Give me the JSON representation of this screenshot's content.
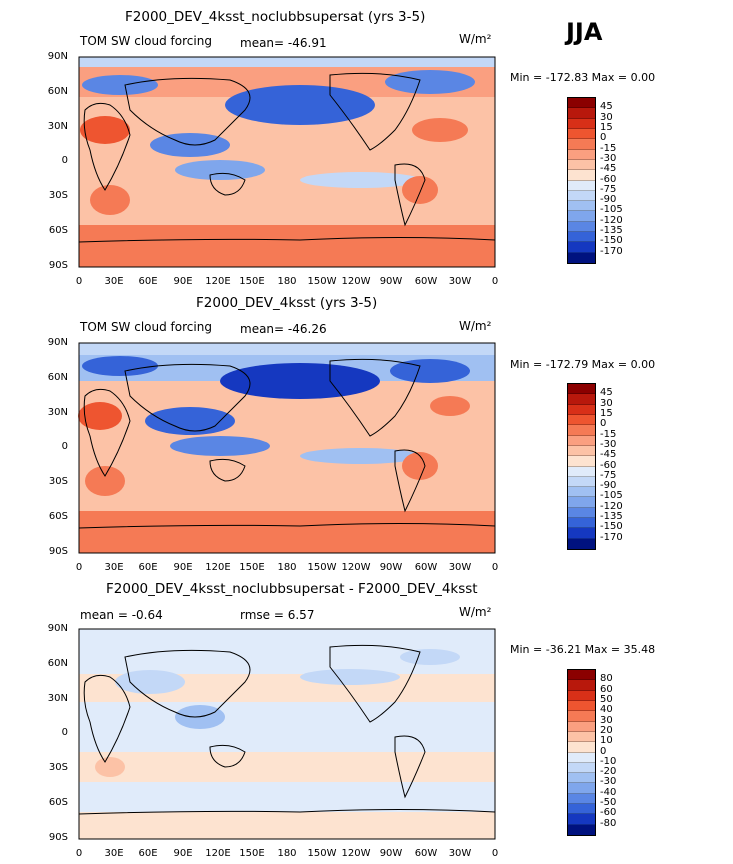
{
  "season": "JJA",
  "panels": [
    {
      "title": "F2000_DEV_4ksst_noclubbsupersat (yrs 3-5)",
      "left_label": "TOM SW cloud forcing",
      "stat_text": "mean= -46.91",
      "units": "W/m²",
      "minmax": "Min = -172.83 Max =    0.00",
      "colorbar_labels": [
        "45",
        "30",
        "15",
        "0",
        "-15",
        "-30",
        "-45",
        "-60",
        "-75",
        "-90",
        "-105",
        "-120",
        "-135",
        "-150",
        "-170"
      ],
      "colorbar_colors": [
        "#8b0000",
        "#b8180c",
        "#d83018",
        "#ee5530",
        "#f57a55",
        "#fa9f80",
        "#fcc2a6",
        "#fde3d0",
        "#e0ebfa",
        "#c3d8f7",
        "#a0c0f2",
        "#7fa6ec",
        "#5a86e4",
        "#3563d8",
        "#1538c0",
        "#00127f"
      ]
    },
    {
      "title": "F2000_DEV_4ksst (yrs 3-5)",
      "left_label": "TOM SW cloud forcing",
      "stat_text": "mean= -46.26",
      "units": "W/m²",
      "minmax": "Min = -172.79 Max =    0.00",
      "colorbar_labels": [
        "45",
        "30",
        "15",
        "0",
        "-15",
        "-30",
        "-45",
        "-60",
        "-75",
        "-90",
        "-105",
        "-120",
        "-135",
        "-150",
        "-170"
      ],
      "colorbar_colors": [
        "#8b0000",
        "#b8180c",
        "#d83018",
        "#ee5530",
        "#f57a55",
        "#fa9f80",
        "#fcc2a6",
        "#fde3d0",
        "#e0ebfa",
        "#c3d8f7",
        "#a0c0f2",
        "#7fa6ec",
        "#5a86e4",
        "#3563d8",
        "#1538c0",
        "#00127f"
      ]
    },
    {
      "title": "F2000_DEV_4ksst_noclubbsupersat - F2000_DEV_4ksst",
      "left_label": "mean =   -0.64",
      "stat_text": "rmse =    6.57",
      "units": "W/m²",
      "minmax": "Min = -36.21 Max =  35.48",
      "colorbar_labels": [
        "80",
        "60",
        "50",
        "40",
        "30",
        "20",
        "10",
        "0",
        "-10",
        "-20",
        "-30",
        "-40",
        "-50",
        "-60",
        "-80"
      ],
      "colorbar_colors": [
        "#8b0000",
        "#b8180c",
        "#d83018",
        "#ee5530",
        "#f57a55",
        "#fa9f80",
        "#fcc2a6",
        "#fde3d0",
        "#e0ebfa",
        "#c3d8f7",
        "#a0c0f2",
        "#7fa6ec",
        "#5a86e4",
        "#3563d8",
        "#1538c0",
        "#00127f"
      ]
    }
  ],
  "lat_labels": [
    "90N",
    "60N",
    "30N",
    "0",
    "30S",
    "60S",
    "90S"
  ],
  "lon_labels": [
    "0",
    "30E",
    "60E",
    "90E",
    "120E",
    "150E",
    "180",
    "150W",
    "120W",
    "90W",
    "60W",
    "30W",
    "0"
  ]
}
